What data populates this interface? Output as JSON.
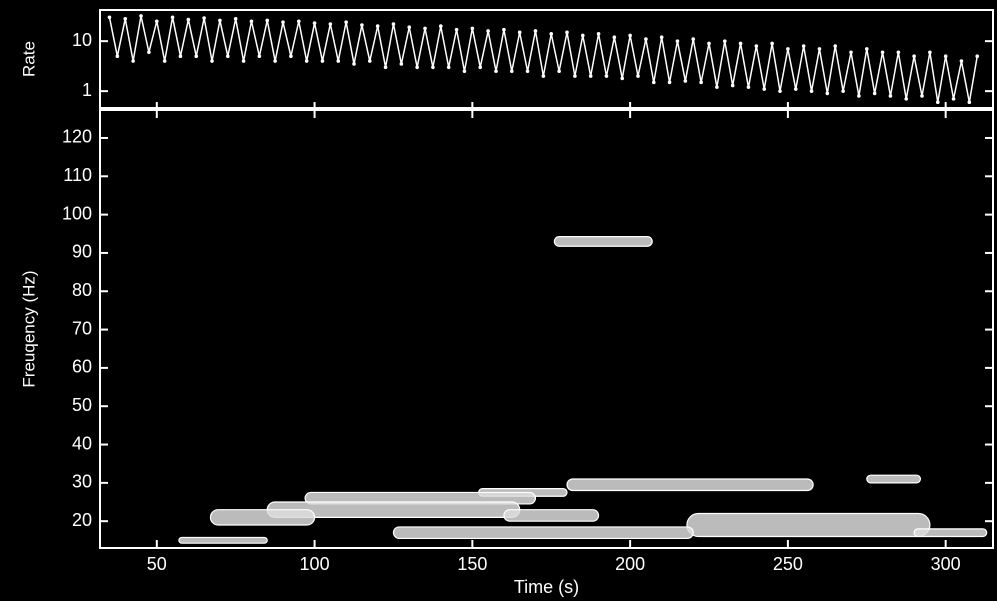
{
  "chart_data": [
    {
      "type": "line",
      "ylabel": "Rate",
      "log_y": true,
      "color": "#ffffff",
      "x": [
        35,
        37.5,
        40,
        42.5,
        45,
        47.5,
        50,
        52.5,
        55,
        57.5,
        60,
        62.5,
        65,
        67.5,
        70,
        72.5,
        75,
        77.5,
        80,
        82.5,
        85,
        87.5,
        90,
        92.5,
        95,
        97.5,
        100,
        102.5,
        105,
        107.5,
        110,
        112.5,
        115,
        117.5,
        120,
        122.5,
        125,
        127.5,
        130,
        132.5,
        135,
        137.5,
        140,
        142.5,
        145,
        147.5,
        150,
        152.5,
        155,
        157.5,
        160,
        162.5,
        165,
        167.5,
        170,
        172.5,
        175,
        177.5,
        180,
        182.5,
        185,
        187.5,
        190,
        192.5,
        195,
        197.5,
        200,
        202.5,
        205,
        207.5,
        210,
        212.5,
        215,
        217.5,
        220,
        222.5,
        225,
        227.5,
        230,
        232.5,
        235,
        237.5,
        240,
        242.5,
        245,
        247.5,
        250,
        252.5,
        255,
        257.5,
        260,
        262.5,
        265,
        267.5,
        270,
        272.5,
        275,
        277.5,
        280,
        282.5,
        285,
        287.5,
        290,
        292.5,
        295,
        297.5,
        300,
        302.5,
        305,
        307.5,
        310
      ],
      "values": [
        30,
        5,
        28,
        4,
        32,
        6,
        25,
        4,
        30,
        5,
        27,
        5,
        29,
        4,
        26,
        5,
        28,
        4,
        25,
        5,
        26,
        4,
        24,
        5,
        25,
        4,
        23,
        4,
        22,
        4,
        24,
        3.5,
        21,
        4,
        20,
        3,
        22,
        3.5,
        19,
        3,
        18,
        3,
        20,
        3,
        17,
        2.5,
        18,
        3,
        16,
        2.5,
        17,
        2.5,
        15,
        2.5,
        16,
        2,
        14,
        2.5,
        15,
        2,
        13,
        2,
        14,
        2,
        12,
        1.8,
        13,
        2,
        11,
        1.5,
        12,
        1.5,
        10,
        1.6,
        11,
        1.5,
        9,
        1.2,
        10,
        1.3,
        9,
        1.2,
        8,
        1.1,
        9,
        1,
        7,
        1.1,
        8,
        1,
        7,
        0.9,
        8,
        1,
        6,
        0.8,
        7,
        0.9,
        6,
        0.8,
        6,
        0.7,
        5,
        0.8,
        6,
        0.6,
        5,
        0.7,
        4,
        0.6,
        5
      ],
      "xlim": [
        32,
        315
      ],
      "ylim": [
        0.46,
        42
      ],
      "yticks": [
        1,
        10
      ]
    },
    {
      "type": "contour",
      "xlabel": "Time (s)",
      "ylabel": "Freuqency (Hz)",
      "color": "#dcdcdc",
      "bands": [
        {
          "x": [
            176,
            207
          ],
          "y": 93,
          "height": 2.5
        },
        {
          "x": [
            275,
            292
          ],
          "y": 31,
          "height": 2
        },
        {
          "x": [
            180,
            258
          ],
          "y": 29.5,
          "height": 3
        },
        {
          "x": [
            152,
            180
          ],
          "y": 27.5,
          "height": 2
        },
        {
          "x": [
            97,
            170
          ],
          "y": 26,
          "height": 3
        },
        {
          "x": [
            85,
            165
          ],
          "y": 23,
          "height": 4
        },
        {
          "x": [
            67,
            100
          ],
          "y": 21,
          "height": 4
        },
        {
          "x": [
            160,
            190
          ],
          "y": 21.5,
          "height": 3
        },
        {
          "x": [
            218,
            295
          ],
          "y": 19,
          "height": 6
        },
        {
          "x": [
            125,
            220
          ],
          "y": 17,
          "height": 3
        },
        {
          "x": [
            290,
            313
          ],
          "y": 17,
          "height": 2
        },
        {
          "x": [
            57,
            85
          ],
          "y": 15,
          "height": 1.5
        }
      ],
      "xlim": [
        32,
        315
      ],
      "ylim": [
        13,
        127.3
      ],
      "xticks": [
        50,
        100,
        150,
        200,
        250,
        300
      ],
      "yticks": [
        20,
        30,
        40,
        50,
        60,
        70,
        80,
        90,
        100,
        110,
        120
      ]
    }
  ]
}
